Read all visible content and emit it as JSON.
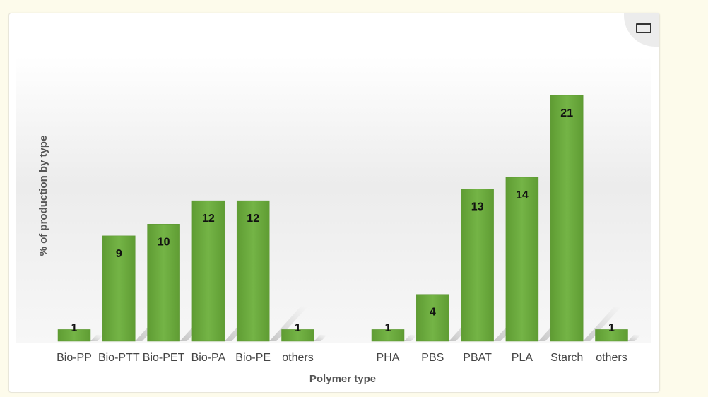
{
  "chart_data": {
    "type": "bar",
    "xlabel": "Polymer type",
    "ylabel": "% of production by type",
    "ylim": [
      0,
      24
    ],
    "grid": false,
    "bar_color": "#6aaa3c",
    "groups": [
      {
        "categories": [
          "Bio-PP",
          "Bio-PTT",
          "Bio-PET",
          "Bio-PA",
          "Bio-PE",
          "others"
        ],
        "values": [
          1,
          9,
          10,
          12,
          12,
          1
        ]
      },
      {
        "categories": [
          "PHA",
          "PBS",
          "PBAT",
          "PLA",
          "Starch",
          "others"
        ],
        "values": [
          1,
          4,
          13,
          14,
          21,
          1
        ]
      }
    ]
  }
}
